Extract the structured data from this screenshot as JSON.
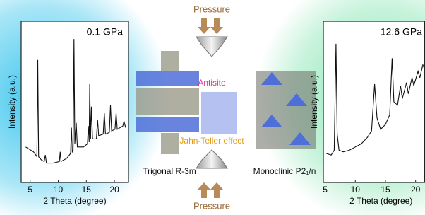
{
  "chart_data": [
    {
      "type": "line",
      "title": "0.1 GPa",
      "xlabel": "2 Theta (degree)",
      "ylabel": "Intensity (a.u.)",
      "color": "#111111",
      "xlim": [
        3.4,
        22.5
      ],
      "xticks": [
        5,
        10,
        15,
        20
      ],
      "ylim": [
        0,
        100
      ],
      "x": [
        4.2,
        5.6,
        6.0,
        6.2,
        6.35,
        6.5,
        7.0,
        7.5,
        7.7,
        7.9,
        9,
        10.2,
        10.35,
        10.5,
        11.5,
        12.2,
        12.35,
        12.5,
        12.65,
        12.8,
        12.95,
        13.2,
        13.4,
        14.5,
        15.2,
        15.35,
        15.5,
        15.6,
        15.75,
        15.9,
        16.1,
        16.8,
        17.0,
        17.2,
        18.0,
        18.2,
        18.4,
        19.1,
        19.3,
        19.5,
        20.1,
        20.3,
        20.5,
        21.5,
        21.7,
        22.0
      ],
      "values": [
        22,
        19,
        17,
        16,
        76,
        16,
        14,
        13,
        17,
        12,
        12,
        13,
        19,
        13,
        15,
        18,
        34,
        19,
        20,
        89,
        24,
        37,
        22,
        22,
        24,
        35,
        25,
        61,
        27,
        47,
        27,
        27,
        39,
        29,
        30,
        43,
        30,
        31,
        48,
        32,
        33,
        43,
        33,
        35,
        38,
        34
      ]
    },
    {
      "type": "line",
      "title": "12.6 GPa",
      "xlabel": "2 Theta (degree)",
      "ylabel": "Intensity (a.u.)",
      "color": "#111111",
      "xlim": [
        4.7,
        21.5
      ],
      "xticks": [
        5,
        10,
        15,
        20
      ],
      "ylim": [
        0,
        100
      ],
      "x": [
        5.2,
        6.0,
        6.5,
        6.8,
        7.0,
        7.3,
        8,
        9,
        10,
        11,
        12,
        12.7,
        13.2,
        13.6,
        14.2,
        15,
        15.7,
        16.1,
        16.4,
        17,
        17.5,
        17.8,
        18.5,
        18.8,
        19.4,
        19.7,
        20.4,
        20.7,
        21.2,
        21.5
      ],
      "values": [
        18,
        17,
        20,
        86,
        30,
        20,
        19,
        20,
        22,
        24,
        28,
        32,
        61,
        40,
        33,
        36,
        42,
        77,
        50,
        48,
        60,
        52,
        62,
        55,
        65,
        60,
        69,
        65,
        73,
        70
      ]
    }
  ],
  "labels": {
    "pressure_top": "Pressure",
    "pressure_bottom": "Pressure",
    "antisite": "Antisite",
    "jahn_teller": "Jahn-Teller effect",
    "trigonal": "Trigonal R-3m",
    "monoclinic": "Monoclinic P2₁/n"
  }
}
